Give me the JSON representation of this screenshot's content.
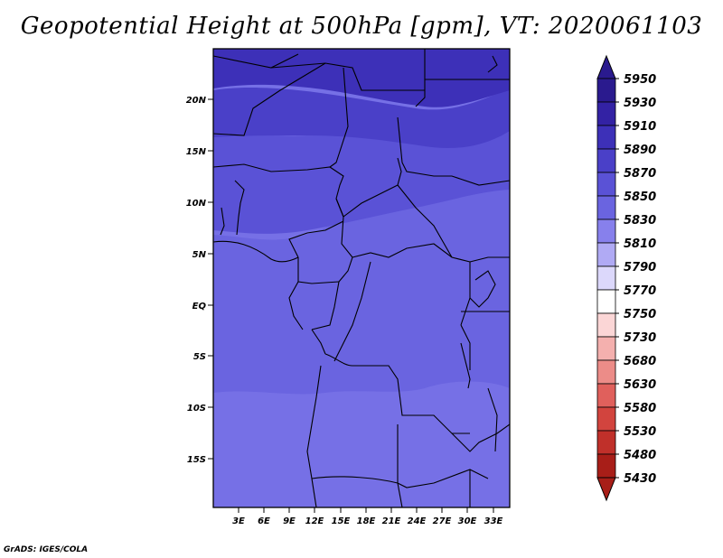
{
  "title": "Geopotential Height at 500hPa [gpm], VT: 2020061103",
  "credit": "GrADS: IGES/COLA",
  "map": {
    "lat_labels": [
      "20N",
      "15N",
      "10N",
      "5N",
      "EQ",
      "5S",
      "10S",
      "15S"
    ],
    "lon_labels": [
      "3E",
      "6E",
      "9E",
      "12E",
      "15E",
      "18E",
      "21E",
      "24E",
      "27E",
      "30E",
      "33E"
    ]
  },
  "colorbar": {
    "levels": [
      "5950",
      "5930",
      "5910",
      "5890",
      "5870",
      "5850",
      "5830",
      "5810",
      "5790",
      "5770",
      "5750",
      "5730",
      "5680",
      "5630",
      "5580",
      "5530",
      "5480",
      "5430"
    ],
    "colors": [
      "#2a1a8e",
      "#3322a4",
      "#3d30b8",
      "#4a40c8",
      "#5a52d6",
      "#6a64e0",
      "#8780ec",
      "#b0aaf4",
      "#dcd8fb",
      "#ffffff",
      "#fbd6d6",
      "#f4b0ae",
      "#ec8c88",
      "#e0605c",
      "#d2443e",
      "#c0302a",
      "#a81e18"
    ]
  },
  "colors": {
    "band_5930": "#3d30b8",
    "band_5910": "#4a40c8",
    "band_5890": "#5a52d6",
    "band_5870": "#6a64e0",
    "band_5850": "#7670e6",
    "border": "#000000"
  }
}
